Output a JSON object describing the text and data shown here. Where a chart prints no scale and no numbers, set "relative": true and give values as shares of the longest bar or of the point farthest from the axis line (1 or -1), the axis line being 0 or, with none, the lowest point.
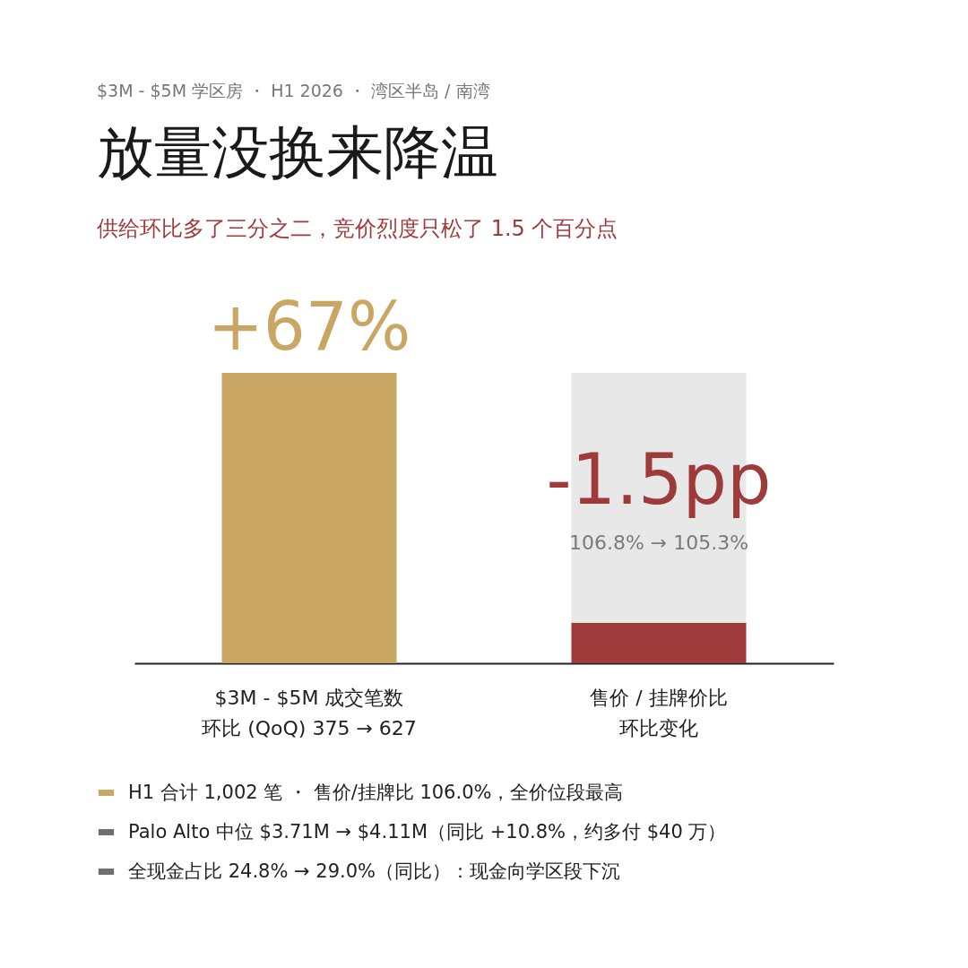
{
  "chart_data": {
    "type": "bar",
    "title": "放量没换来降温",
    "subtitle": "供给环比多了三分之二，竞价烈度只松了 1.5 个百分点",
    "categories": [
      "$3M - $5M 成交笔数",
      "售价 / 挂牌价比"
    ],
    "relative": true,
    "stacked": true,
    "legend": "bottom left",
    "series": [
      {
        "name": "H1 合计 1,002 笔 ・ 售价/挂牌比 106.0%，全价位段最高",
        "color": "#c9a663",
        "values": [
          1,
          null
        ]
      },
      {
        "color": "#9e3a3a",
        "values": [
          null,
          0.14
        ]
      },
      {
        "color": "#e8e8e8",
        "values": [
          null,
          0.86
        ]
      },
      {
        "name": "Palo Alto 中位 $3.71M → $4.11M（同比 +10.8%，约多付 $40 万）",
        "color": "#6e6e6e",
        "values": [
          null,
          null
        ]
      },
      {
        "name": "全现金占比 24.8% → 29.0%（同比）：现金向学区段下沉",
        "color": "#6e6e6e",
        "values": [
          null,
          null
        ]
      }
    ],
    "annotations": [
      "$3M - $5M 学区房 ・ H1 2026 ・ 湾区半岛 / 南湾",
      "+67%",
      "-1.5pp",
      "106.8% → 105.3%",
      "环比 (QoQ)  375 → 627",
      "环比变化"
    ]
  }
}
